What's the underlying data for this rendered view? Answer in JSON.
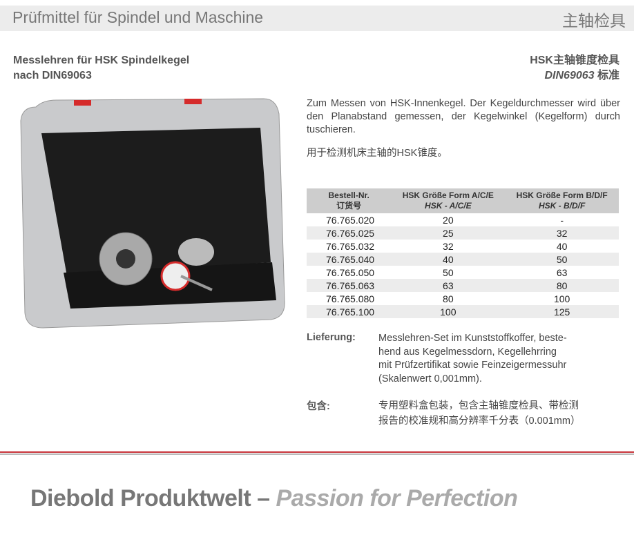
{
  "header": {
    "title": "Prüfmittel für Spindel und Maschine",
    "title_cn": "主轴检具"
  },
  "subtitle": {
    "line1": "Messlehren für HSK Spindelkegel",
    "line2": "nach DIN69063",
    "cn_line1": "HSK主轴锥度检具",
    "cn_line2_italic": "DIN69063",
    "cn_line2_rest": " 标准"
  },
  "description": "Zum Messen von HSK-Innenkegel. Der Kegeldurchmesser wird über den Planabstand gemessen, der Kegelwinkel (Kegelform) durch tuschieren.",
  "description_cn": "用于检测机床主轴的HSK锥度。",
  "table": {
    "headers": [
      {
        "l1": "Bestell-Nr.",
        "l2": "订货号"
      },
      {
        "l1": "HSK Größe Form A/C/E",
        "l2": "HSK - A/C/E"
      },
      {
        "l1": "HSK Größe Form B/D/F",
        "l2": "HSK - B/D/F"
      }
    ],
    "rows": [
      [
        "76.765.020",
        "20",
        "-"
      ],
      [
        "76.765.025",
        "25",
        "32"
      ],
      [
        "76.765.032",
        "32",
        "40"
      ],
      [
        "76.765.040",
        "40",
        "50"
      ],
      [
        "76.765.050",
        "50",
        "63"
      ],
      [
        "76.765.063",
        "63",
        "80"
      ],
      [
        "76.765.080",
        "80",
        "100"
      ],
      [
        "76.765.100",
        "100",
        "125"
      ]
    ]
  },
  "delivery": {
    "label": "Lieferung:",
    "lines": [
      "Messlehren-Set im Kunststoffkoffer, beste-",
      "hend aus Kegelmessdorn, Kegellehrring",
      "mit Prüfzertifikat sowie Feinzeigermessuhr",
      "(Skalenwert 0,001mm)."
    ]
  },
  "contents_cn": {
    "label": "包含:",
    "lines": [
      "专用塑料盒包装，包含主轴锥度检具、带检测",
      "报告的校准规和高分辨率千分表（0.001mm）"
    ]
  },
  "footer": {
    "brand": "Diebold Produktwelt – ",
    "slogan": "Passion for Perfection"
  },
  "colors": {
    "accent_red": "#c8343a",
    "header_bg": "#ececec"
  }
}
